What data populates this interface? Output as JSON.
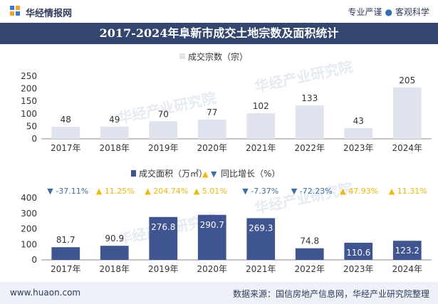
{
  "header": {
    "brand": "华经情报网",
    "slogan_left": "专业严谨",
    "slogan_sep": "●",
    "slogan_right": "客观科学"
  },
  "title": "2017-2024年阜新市成交土地宗数及面积统计",
  "footer": {
    "website": "www.huaon.com",
    "source": "数据来源：国信房地产信息网，华经产业研究院整理"
  },
  "watermark": "华经产业研究院",
  "colors": {
    "header_bg": "#33466f",
    "bar_top": "#dfe3ee",
    "bar_bottom": "#3f5591",
    "up": "#f5b800",
    "down": "#3d6fa6"
  },
  "chart_data": [
    {
      "type": "bar",
      "legend": "成交宗数（宗）",
      "categories": [
        "2017年",
        "2018年",
        "2019年",
        "2020年",
        "2021年",
        "2022年",
        "2023年",
        "2024年"
      ],
      "values": [
        48,
        49,
        70,
        77,
        102,
        133,
        43,
        205
      ],
      "ylim": [
        0,
        250
      ],
      "yticks": [
        0,
        50,
        100,
        150,
        200,
        250
      ],
      "grid": false
    },
    {
      "type": "bar",
      "legend": [
        "成交面积（万㎡）",
        "同比增长（%）"
      ],
      "categories": [
        "2017年",
        "2018年",
        "2019年",
        "2020年",
        "2021年",
        "2022年",
        "2023年",
        "2024年"
      ],
      "values": [
        81.7,
        90.9,
        276.8,
        290.7,
        269.3,
        74.8,
        110.6,
        123.2
      ],
      "growth_labels": [
        "-37.11%",
        "11.25%",
        "204.74%",
        "5.01%",
        "-7.37%",
        "-72.23%",
        "47.93%",
        "11.31%"
      ],
      "growth_direction": [
        "down",
        "up",
        "up",
        "up",
        "down",
        "down",
        "up",
        "up"
      ],
      "ylim": [
        0,
        400
      ],
      "yticks": [
        0,
        100,
        200,
        300,
        400
      ],
      "grid": false
    }
  ]
}
